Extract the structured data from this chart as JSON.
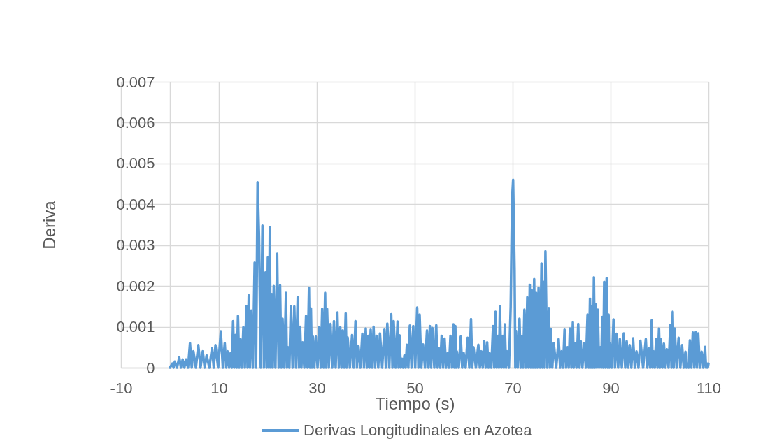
{
  "chart_data": {
    "type": "line",
    "xlabel": "Tiempo (s)",
    "ylabel": "Deriva",
    "xlim": [
      -10,
      110
    ],
    "xticks": [
      -10,
      10,
      30,
      50,
      70,
      90,
      110
    ],
    "ylim": [
      0,
      0.007
    ],
    "yticks": [
      0,
      0.001,
      0.002,
      0.003,
      0.004,
      0.005,
      0.006,
      0.007
    ],
    "grid": true,
    "legend": "bottom",
    "line_style": "solid",
    "x": [
      0.0,
      0.5,
      0.75,
      1.0,
      1.45,
      1.9,
      2.25,
      2.6,
      2.95,
      3.3,
      3.7,
      4.1,
      4.45,
      4.8,
      5.3,
      5.8,
      6.25,
      6.7,
      7.1,
      7.5,
      8.05,
      8.6,
      8.95,
      9.3,
      9.85,
      10.4,
      10.8,
      11.2,
      11.5,
      11.8,
      12.1,
      12.4,
      12.65,
      12.9,
      13.15,
      13.4,
      13.65,
      13.9,
      14.15,
      14.4,
      14.7,
      15.0,
      15.3,
      15.6,
      15.85,
      16.1,
      16.35,
      16.6,
      16.95,
      17.3,
      17.6,
      17.9,
      18.2,
      18.55,
      18.9,
      19.2,
      19.5,
      19.75,
      20.0,
      20.2,
      20.4,
      20.6,
      20.8,
      21.0,
      21.2,
      21.55,
      21.9,
      22.2,
      22.5,
      22.75,
      23.0,
      23.35,
      23.7,
      23.9,
      24.1,
      24.4,
      24.7,
      25.05,
      25.4,
      25.75,
      26.1,
      26.35,
      26.6,
      26.85,
      27.1,
      27.45,
      27.8,
      28.1,
      28.4,
      28.6,
      28.8,
      29.0,
      29.2,
      29.5,
      29.8,
      30.15,
      30.5,
      30.8,
      31.1,
      31.4,
      31.7,
      31.9,
      32.1,
      32.45,
      32.8,
      33.15,
      33.5,
      33.85,
      34.2,
      34.5,
      34.8,
      35.05,
      35.3,
      35.6,
      35.9,
      36.1,
      36.3,
      36.75,
      37.2,
      37.55,
      37.9,
      38.2,
      38.5,
      38.9,
      39.3,
      39.65,
      40.0,
      40.25,
      40.5,
      40.75,
      41.0,
      41.3,
      41.6,
      41.9,
      42.2,
      42.55,
      42.9,
      43.35,
      43.8,
      44.1,
      44.4,
      44.8,
      45.2,
      45.45,
      45.7,
      46.1,
      46.5,
      46.7,
      46.9,
      47.15,
      47.4,
      47.65,
      47.9,
      48.15,
      48.4,
      48.7,
      49.0,
      49.35,
      49.7,
      50.1,
      50.5,
      50.75,
      51.0,
      51.35,
      51.7,
      52.1,
      52.5,
      52.8,
      53.1,
      53.35,
      53.6,
      54.0,
      54.4,
      54.65,
      54.9,
      55.2,
      55.5,
      55.8,
      56.1,
      56.4,
      56.7,
      57.0,
      57.3,
      57.6,
      57.9,
      58.1,
      58.3,
      58.45,
      58.6,
      59.0,
      59.4,
      59.7,
      60.0,
      60.4,
      60.8,
      61.15,
      61.5,
      61.75,
      62.0,
      62.5,
      63.0,
      63.3,
      63.6,
      63.9,
      64.2,
      64.5,
      64.8,
      65.05,
      65.3,
      65.65,
      66.0,
      66.25,
      66.5,
      66.75,
      67.0,
      67.2,
      67.4,
      67.7,
      68.0,
      68.2,
      68.4,
      68.65,
      68.9,
      69.25,
      69.6,
      69.9,
      70.1,
      70.4,
      70.55,
      70.7,
      71.05,
      71.4,
      71.65,
      71.9,
      72.15,
      72.4,
      72.7,
      73.0,
      73.25,
      73.5,
      73.7,
      73.9,
      74.15,
      74.4,
      74.6,
      74.8,
      75.05,
      75.3,
      75.6,
      75.9,
      76.1,
      76.3,
      76.5,
      76.7,
      77.05,
      77.4,
      77.6,
      77.8,
      78.1,
      78.4,
      78.9,
      79.4,
      79.7,
      80.0,
      80.3,
      80.6,
      80.9,
      81.2,
      81.45,
      81.7,
      82.0,
      82.3,
      82.5,
      82.7,
      83.05,
      83.4,
      83.65,
      83.9,
      84.25,
      84.6,
      84.95,
      85.3,
      85.55,
      85.8,
      86.0,
      86.2,
      86.4,
      86.6,
      86.8,
      87.0,
      87.2,
      87.4,
      87.65,
      87.9,
      88.1,
      88.3,
      88.5,
      88.7,
      88.95,
      89.2,
      89.4,
      89.6,
      89.75,
      89.9,
      90.25,
      90.6,
      90.9,
      91.2,
      91.55,
      91.9,
      92.3,
      92.7,
      93.0,
      93.3,
      93.6,
      93.9,
      94.25,
      94.6,
      94.95,
      95.3,
      95.7,
      96.1,
      96.65,
      97.2,
      97.5,
      97.8,
      98.1,
      98.4,
      98.6,
      98.8,
      99.05,
      99.3,
      99.6,
      99.9,
      100.1,
      100.3,
      100.6,
      100.9,
      101.2,
      101.5,
      101.85,
      102.2,
      102.45,
      102.7,
      102.9,
      103.1,
      103.5,
      103.9,
      104.25,
      104.6,
      104.95,
      105.3,
      105.5,
      105.7,
      105.95,
      106.2,
      106.5,
      106.8,
      107.1,
      107.4,
      107.65,
      107.9,
      108.25,
      108.6,
      108.95,
      109.3,
      109.5,
      109.7,
      109.85,
      110.0
    ],
    "series": [
      {
        "name": "Derivas Longitudinales en Azotea",
        "color": "#5b9bd5",
        "values": [
          0,
          0.0001,
          0,
          0.00015,
          0,
          0.00025,
          0,
          0.0002,
          0,
          0.0002,
          0,
          0.0006,
          0,
          0.0004,
          0,
          0.00055,
          0,
          0.0004,
          0,
          0.0003,
          0,
          0.00048,
          0,
          0.00055,
          0,
          0.00089,
          0,
          0.0006,
          0,
          0.0004,
          0,
          0.00036,
          0,
          0.00114,
          0,
          0.0008,
          0,
          0.00127,
          0,
          0.0007,
          0,
          0.00099,
          0,
          0.0015,
          0,
          0.00177,
          0,
          0.0014,
          0,
          0.00257,
          0,
          0.00454,
          0.0032,
          0,
          0.00348,
          0,
          0.00233,
          0,
          0.0027,
          0,
          0.00344,
          0,
          0.0018,
          0,
          0.002,
          0,
          0.00279,
          0,
          0.00202,
          0,
          0.0012,
          0,
          0.00183,
          0,
          0.0005,
          0,
          0.0015,
          0,
          0.0015,
          0,
          0.00173,
          0,
          0.001,
          0,
          0.00062,
          0,
          0.00127,
          0,
          0.00196,
          0,
          0.00145,
          0,
          0.00076,
          0,
          0.00076,
          0,
          0.00099,
          0,
          0.00144,
          0,
          0.00183,
          0,
          0.00144,
          0,
          0.00107,
          0,
          0.00114,
          0,
          0.00135,
          0,
          0.00099,
          0,
          0.00091,
          0,
          0.00133,
          0,
          0.00074,
          0,
          0.0008,
          0,
          0.00114,
          0,
          0.00053,
          0,
          0.00083,
          0,
          0.00096,
          0,
          0.00078,
          0,
          0.00093,
          0,
          0.001,
          0,
          0.00078,
          0,
          0.00084,
          0,
          0.00093,
          0,
          0.00108,
          0,
          0.00131,
          0,
          0.00114,
          0,
          0.00113,
          0,
          0.00079,
          0,
          0.00022,
          0,
          0.0003,
          0,
          0.00056,
          0,
          0.00103,
          0,
          0.00102,
          0,
          0.00147,
          0,
          0.0013,
          0,
          0.00057,
          0,
          0.00091,
          0,
          0.00102,
          0,
          0.00097,
          0,
          0.00104,
          0,
          0.00048,
          0,
          0.00078,
          0,
          0.00071,
          0,
          0.00035,
          0,
          0.00078,
          0,
          0.00106,
          0,
          0.00102,
          0,
          0.0004,
          0,
          0.00076,
          0,
          0.00036,
          0,
          0.00073,
          0,
          0.00119,
          0,
          0.0005,
          0,
          0.00056,
          0,
          0.0004,
          0,
          0.00065,
          0,
          0.00062,
          0,
          0.00035,
          0,
          0.00102,
          0,
          0.00137,
          0,
          0.00078,
          0,
          0.0015,
          0,
          0.00078,
          0,
          0.00106,
          0,
          0.0004,
          0,
          0.0015,
          0.00416,
          0.0046,
          0.00239,
          0,
          0.0009,
          0,
          0.0012,
          0,
          0.00078,
          0,
          0.00142,
          0,
          0.00173,
          0,
          0.00203,
          0,
          0.0019,
          0,
          0.00217,
          0,
          0.00183,
          0,
          0.00196,
          0,
          0.00255,
          0,
          0.0021,
          0,
          0.00285,
          0,
          0.00146,
          0,
          0.00095,
          0,
          0.0006,
          0,
          0.0007,
          0,
          0.0004,
          0,
          0.00093,
          0,
          0.0005,
          0,
          0.00096,
          0,
          0.00111,
          0,
          0.0006,
          0,
          0.00107,
          0,
          0.00065,
          0,
          0.0006,
          0,
          0.0013,
          0,
          0.00169,
          0,
          0.0015,
          0,
          0.00221,
          0,
          0.00156,
          0,
          0.00142,
          0,
          0.0005,
          0,
          0.00124,
          0,
          0.0021,
          0,
          0.00219,
          0,
          0.0013,
          0,
          0.0006,
          0,
          0.00118,
          0,
          0.00083,
          0,
          0.0007,
          0,
          0.00084,
          0,
          0.00065,
          0,
          0.00055,
          0,
          0.00072,
          0,
          0.0004,
          0,
          0.00066,
          0,
          0.0007,
          0,
          0.00047,
          0,
          0.00116,
          0,
          0.0004,
          0,
          0.0007,
          0,
          0.00096,
          0,
          0.0007,
          0,
          0.00059,
          0,
          0.00045,
          0,
          0.00104,
          0,
          0.00137,
          0,
          0.00096,
          0,
          0.00073,
          0,
          0.00055,
          0,
          0.00039,
          0,
          0.0001,
          0,
          0.00067,
          0,
          0.00086,
          0,
          0.00087,
          0,
          0.00084,
          0,
          0.00039,
          0,
          0.00051,
          0,
          0.0001,
          0,
          0.0001
        ]
      }
    ]
  }
}
